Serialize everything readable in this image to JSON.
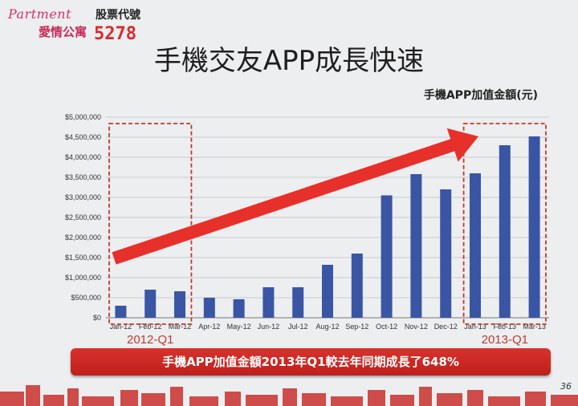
{
  "logo": {
    "brand": "Partment",
    "subtitle": "愛情公寓",
    "stock_label": "股票代號",
    "stock_code": "5278"
  },
  "slide_title": "手機交友APP成長快速",
  "banner_text": "手機APP加值金額2013年Q1較去年同期成長了648%",
  "page_number": "36",
  "colors": {
    "bar": "#3a55a4",
    "arrow": "#e8302a",
    "highlight": "#c0392b",
    "banner": "#c8261f"
  },
  "chart_data": {
    "type": "bar",
    "title": "手機APP加值金額(元)",
    "categories": [
      "Jan-12",
      "Feb-12",
      "Mar-12",
      "Apr-12",
      "May-12",
      "Jun-12",
      "Jul-12",
      "Aug-12",
      "Sep-12",
      "Oct-12",
      "Nov-12",
      "Dec-12",
      "Jan-13",
      "Feb-13",
      "Mar-13"
    ],
    "values": [
      300000,
      700000,
      660000,
      500000,
      460000,
      760000,
      760000,
      1320000,
      1600000,
      3050000,
      3580000,
      3200000,
      3600000,
      4300000,
      4520000
    ],
    "ylim": [
      0,
      5000000
    ],
    "yticks": [
      "$0",
      "$500,000",
      "$1,000,000",
      "$1,500,000",
      "$2,000,000",
      "$2,500,000",
      "$3,000,000",
      "$3,500,000",
      "$4,000,000",
      "$4,500,000",
      "$5,000,000"
    ],
    "grid": true,
    "annotations": [
      {
        "label": "2012-Q1",
        "from_category": 0,
        "to_category": 2
      },
      {
        "label": "2013-Q1",
        "from_category": 12,
        "to_category": 14
      }
    ]
  }
}
